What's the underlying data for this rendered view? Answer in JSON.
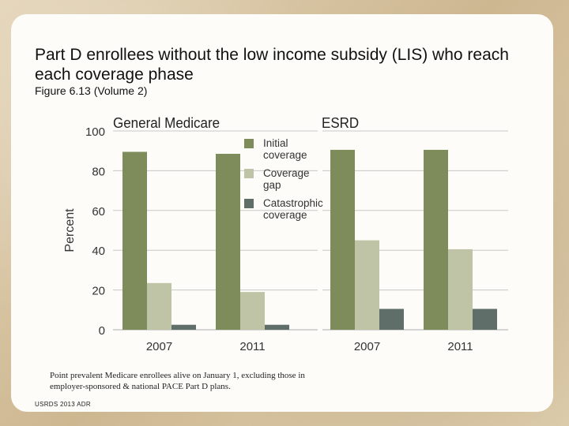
{
  "slide": {
    "title": "Part D enrollees without the low income subsidy (LIS) who reach each coverage phase",
    "subtitle": "Figure 6.13 (Volume 2)",
    "note": "Point prevalent Medicare enrollees alive on January 1, excluding those in employer-sponsored & national PACE Part D plans.",
    "source": "USRDS 2013 ADR"
  },
  "chart_data": {
    "type": "bar",
    "ylabel": "Percent",
    "ylim": [
      0,
      100
    ],
    "yticks": [
      "0",
      "20",
      "40",
      "60",
      "80",
      "100"
    ],
    "legend": [
      "Initial coverage",
      "Coverage gap",
      "Catastrophic coverage"
    ],
    "legend_lines": [
      [
        "Initial",
        "coverage"
      ],
      [
        "Coverage",
        "gap"
      ],
      [
        "Catastrophic",
        "coverage"
      ]
    ],
    "colors": [
      "#7e8c5c",
      "#bfc4a6",
      "#606e6a"
    ],
    "panels": [
      {
        "title": "General Medicare",
        "categories": [
          "2007",
          "2011"
        ],
        "series": [
          {
            "name": "Initial coverage",
            "values": [
              89.5,
              88.5
            ]
          },
          {
            "name": "Coverage gap",
            "values": [
              23.5,
              19
            ]
          },
          {
            "name": "Catastrophic coverage",
            "values": [
              2.5,
              2.5
            ]
          }
        ]
      },
      {
        "title": "ESRD",
        "categories": [
          "2007",
          "2011"
        ],
        "series": [
          {
            "name": "Initial coverage",
            "values": [
              90.5,
              90.5
            ]
          },
          {
            "name": "Coverage gap",
            "values": [
              45,
              40.5
            ]
          },
          {
            "name": "Catastrophic coverage",
            "values": [
              10.5,
              10.5
            ]
          }
        ]
      }
    ]
  }
}
